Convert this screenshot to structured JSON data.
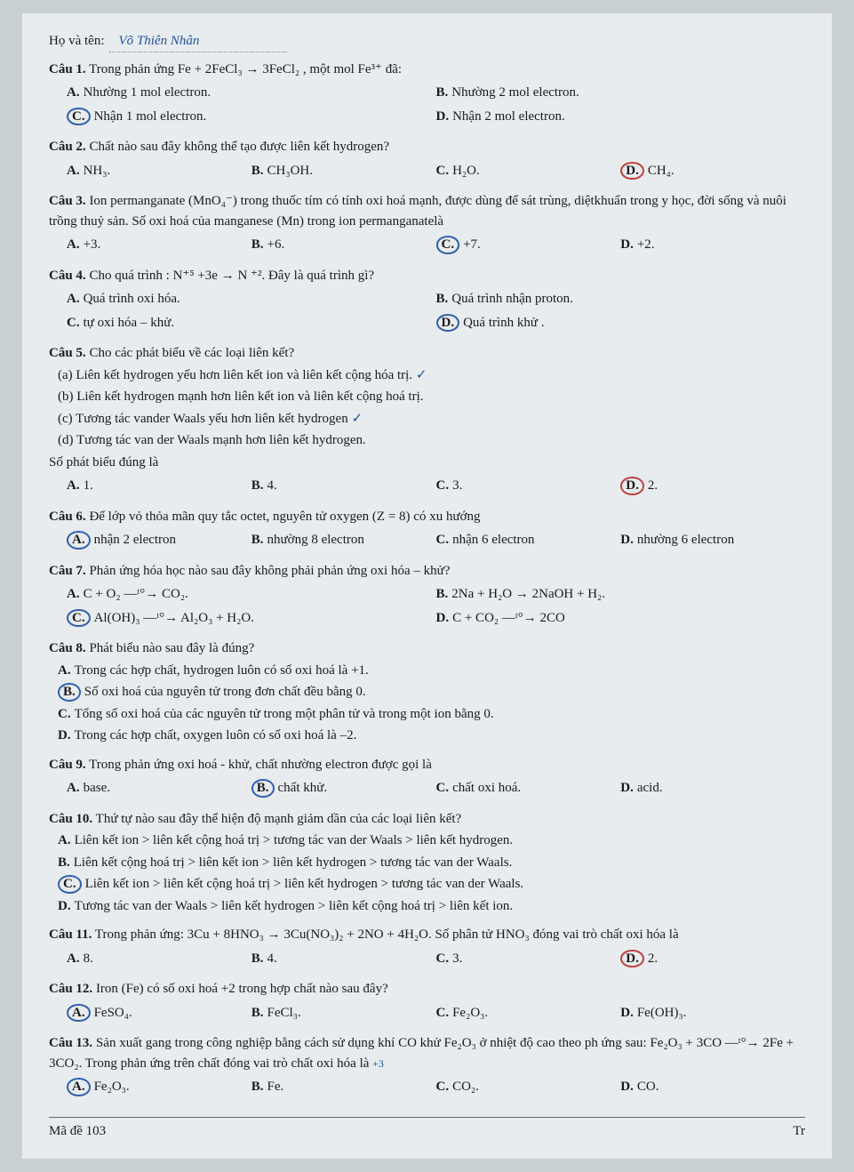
{
  "header": {
    "name_label": "Họ và tên:",
    "name_value": "Võ Thiên Nhân"
  },
  "q1": {
    "label": "Câu 1.",
    "text": "Trong phản ứng Fe + 2FeCl₃ → 3FeCl₂ , một mol Fe³⁺ đã:",
    "a": "Nhường 1 mol electron.",
    "b": "Nhường 2 mol electron.",
    "c": "Nhận 1 mol electron.",
    "d": "Nhận 2 mol electron."
  },
  "q2": {
    "label": "Câu 2.",
    "text": "Chất nào sau đây không thể tạo được liên kết hydrogen?",
    "a": "NH₃.",
    "b": "CH₃OH.",
    "c": "H₂O.",
    "d": "CH₄."
  },
  "q3": {
    "label": "Câu 3.",
    "text": "Ion permanganate (MnO₄⁻) trong thuốc tím có tính oxi hoá mạnh, được dùng để sát trùng, diệtkhuẩn trong y học, đời sống và nuôi trồng thuỷ sản. Số oxi hoá của manganese (Mn) trong ion permanganatelà",
    "a": "+3.",
    "b": "+6.",
    "c": "+7.",
    "d": "+2."
  },
  "q4": {
    "label": "Câu 4.",
    "text": "Cho quá trình : N⁺⁵ +3e → N ⁺². Đây là quá trình gì?",
    "a": "Quá trình oxi hóa.",
    "b": "Quá trình nhận proton.",
    "c": "tự oxi hóa – khử.",
    "d": "Quá trình khử ."
  },
  "q5": {
    "label": "Câu 5.",
    "text": "Cho các phát biểu về các loại liên kết?",
    "s_a": "(a) Liên kết hydrogen yếu hơn liên kết ion và liên kết cộng hóa trị.",
    "s_b": "(b) Liên kết hydrogen mạnh hơn liên kết ion và liên kết cộng hoá trị.",
    "s_c": "(c) Tương tác vander Waals yếu hơn liên kết hydrogen",
    "s_d": "(d) Tương tác van der Waals mạnh hơn liên kết hydrogen.",
    "prompt": "Số phát biểu đúng là",
    "a": "1.",
    "b": "4.",
    "c": "3.",
    "d": "2."
  },
  "q6": {
    "label": "Câu 6.",
    "text": "Để lớp vỏ thỏa mãn quy tắc octet, nguyên tử oxygen (Z = 8) có xu hướng",
    "a": "nhận 2 electron",
    "b": "nhường 8 electron",
    "c": "nhận 6 electron",
    "d": "nhường 6 electron"
  },
  "q7": {
    "label": "Câu 7.",
    "text": "Phản ứng hóa học nào sau đây không phải phản ứng oxi hóa – khử?",
    "a": "C + O₂ —ᵗ°→ CO₂.",
    "b": "2Na + H₂O → 2NaOH + H₂.",
    "c": "Al(OH)₃ —ᵗ°→ Al₂O₃ + H₂O.",
    "d": "C + CO₂ —ᵗ°→ 2CO"
  },
  "q8": {
    "label": "Câu 8.",
    "text": "Phát biểu nào sau đây là đúng?",
    "a": "Trong các hợp chất, hydrogen luôn có số oxi hoá là +1.",
    "b": "Số oxi hoá của nguyên tử trong đơn chất đều bằng 0.",
    "c": "Tổng số oxi hoá của các nguyên tử trong một phân tử và trong một ion bằng 0.",
    "d": "Trong các hợp chất, oxygen luôn có số oxi hoá là –2."
  },
  "q9": {
    "label": "Câu 9.",
    "text": "Trong phản ứng oxi hoá - khử, chất nhường electron được gọi là",
    "a": "base.",
    "b": "chất khử.",
    "c": "chất oxi hoá.",
    "d": "acid."
  },
  "q10": {
    "label": "Câu 10.",
    "text": "Thứ tự nào sau đây thể hiện độ mạnh giảm dần của các loại liên kết?",
    "a": "Liên kết ion > liên kết cộng hoá trị > tương tác van der Waals > liên kết hydrogen.",
    "b": "Liên kết cộng hoá trị > liên kết ion > liên kết hydrogen > tương tác van der Waals.",
    "c": "Liên kết ion > liên kết cộng hoá trị > liên kết hydrogen > tương tác van der Waals.",
    "d": "Tương tác van der Waals > liên kết hydrogen > liên kết cộng hoá trị > liên kết ion."
  },
  "q11": {
    "label": "Câu 11.",
    "text": "Trong phản ứng: 3Cu + 8HNO₃ → 3Cu(NO₃)₂ + 2NO + 4H₂O. Số phân tử HNO₃ đóng vai trò chất oxi hóa là",
    "a": "8.",
    "b": "4.",
    "c": "3.",
    "d": "2."
  },
  "q12": {
    "label": "Câu 12.",
    "text": "Iron (Fe) có số oxi hoá +2 trong hợp chất nào sau đây?",
    "a": "FeSO₄.",
    "b": "FeCl₃.",
    "c": "Fe₂O₃.",
    "d": "Fe(OH)₃."
  },
  "q13": {
    "label": "Câu 13.",
    "text": "Sản xuất gang trong công nghiệp bằng cách sử dụng khí CO khử Fe₂O₃ ở nhiệt độ cao theo ph ứng sau: Fe₂O₃ + 3CO —ᵗ°→ 2Fe + 3CO₂. Trong phản ứng trên chất đóng vai trò chất oxi hóa là",
    "a": "Fe₂O₃.",
    "b": "Fe.",
    "c": "CO₂.",
    "d": "CO."
  },
  "footer": {
    "code": "Mã đề 103",
    "page": "Tr"
  },
  "marks": {
    "check_a": "✓",
    "check_c": "✓",
    "plus3": "+3"
  },
  "colors": {
    "handwriting": "#2050a0",
    "circle_blue": "#3060b0",
    "circle_red": "#c04040",
    "paper_bg": "#e8ecee",
    "body_bg": "#c8d0d4",
    "text": "#1a1a1a"
  }
}
